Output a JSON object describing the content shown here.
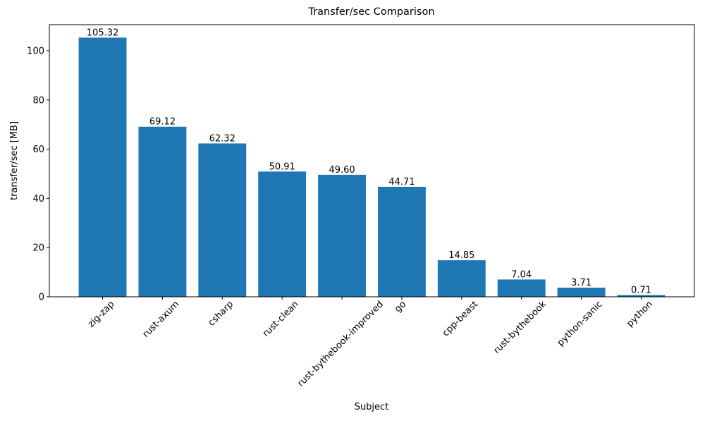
{
  "chart_data": {
    "type": "bar",
    "title": "Transfer/sec Comparison",
    "x_label": "Subject",
    "y_label": "transfer/sec [MB]",
    "categories": [
      "zig-zap",
      "rust-axum",
      "csharp",
      "rust-clean",
      "rust-bythebook-improved",
      "go",
      "cpp-beast",
      "rust-bythebook",
      "python-sanic",
      "python"
    ],
    "values": [
      105.32,
      69.12,
      62.32,
      50.91,
      49.6,
      44.71,
      14.85,
      7.04,
      3.71,
      0.71
    ],
    "value_labels": [
      "105.32",
      "69.12",
      "62.32",
      "50.91",
      "49.60",
      "44.71",
      "14.85",
      "7.04",
      "3.71",
      "0.71"
    ],
    "color": "#1f77b4",
    "ylim": [
      0,
      110.59
    ],
    "yticks": [
      0,
      20,
      40,
      60,
      80,
      100
    ],
    "grid": false
  }
}
